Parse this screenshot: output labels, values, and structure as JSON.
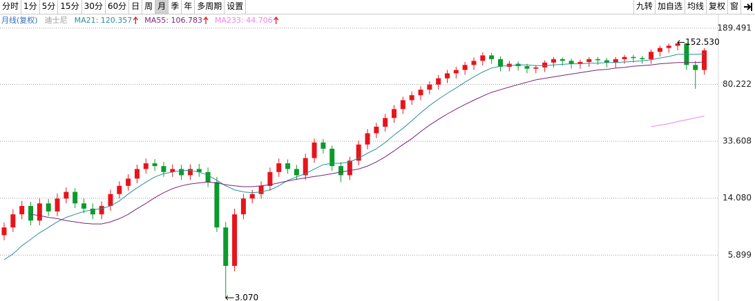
{
  "toolbar": {
    "left": [
      "分时",
      "1分",
      "5分",
      "15分",
      "30分",
      "60分",
      "日",
      "周",
      "月",
      "季",
      "年",
      "多周期",
      "设置"
    ],
    "selected_index": 8,
    "right": [
      "九转",
      "加自选",
      "均线",
      "复权",
      "窗"
    ]
  },
  "chart_data": {
    "type": "candlestick",
    "period_label": "月线(复权)",
    "stock_name": "迪士尼",
    "log_scale": true,
    "ylim": [
      2.923,
      212.6
    ],
    "grid": true,
    "yticks": [
      189.491,
      80.222,
      33.608,
      {
        "value": 14.08,
        "label": "14.080"
      },
      5.899
    ],
    "up_color": "#e8141b",
    "down_color": "#0c9a2c",
    "high_label": "152.530",
    "high_index": 76,
    "low_label": "3.070",
    "low_index": 25,
    "open": [
      8,
      9,
      11,
      12.5,
      10,
      13,
      11.5,
      14,
      15.5,
      13,
      12,
      11,
      12.5,
      15,
      17,
      19,
      22,
      24,
      23,
      21,
      22,
      20,
      22,
      21,
      18,
      9,
      5,
      11,
      14,
      15,
      17,
      21,
      24,
      22,
      20,
      26,
      33,
      30,
      23,
      20,
      25,
      32,
      38,
      42,
      48,
      55,
      63,
      68,
      74,
      80,
      88,
      95,
      100,
      108,
      115,
      125,
      118,
      105,
      110,
      106,
      102,
      104,
      112,
      118,
      115,
      110,
      113,
      118,
      116,
      112,
      118,
      122,
      120,
      118,
      132,
      140,
      145,
      150,
      108,
      100
    ],
    "high": [
      9.7,
      11.9,
      13.5,
      13.3,
      14,
      13.9,
      15.1,
      16.6,
      16.4,
      14,
      13,
      13.4,
      16,
      18.2,
      20.3,
      23.5,
      25.8,
      25.6,
      24.5,
      23.6,
      23.5,
      23.6,
      23.8,
      22.5,
      19.5,
      9.8,
      12,
      15,
      16,
      18.2,
      22.5,
      25.8,
      25.5,
      23.4,
      27.8,
      35,
      34.8,
      31.5,
      24.5,
      26.5,
      34,
      40.5,
      44.5,
      51,
      58.5,
      66.5,
      72,
      78,
      84,
      92.5,
      100,
      105,
      113,
      121,
      131,
      130,
      123,
      115,
      114,
      110,
      108,
      116,
      122,
      121,
      119,
      117,
      122,
      122,
      120,
      122,
      126,
      126,
      124,
      137,
      145,
      150,
      152.53,
      151,
      115,
      140
    ],
    "low": [
      7.4,
      8.4,
      10.2,
      9.3,
      9.3,
      10.7,
      10.7,
      13,
      12.1,
      11.2,
      10.2,
      10.2,
      11.6,
      14,
      15.8,
      17.7,
      20.5,
      21.4,
      19.5,
      19.5,
      18.6,
      18.6,
      19.5,
      16.7,
      8.4,
      3.07,
      4.6,
      10.2,
      13,
      14,
      15.8,
      19.5,
      20.5,
      18.6,
      18.6,
      24.2,
      27.9,
      21.4,
      18,
      18.6,
      23.3,
      29.8,
      35.3,
      39,
      44.6,
      51,
      58.6,
      63,
      69,
      74.4,
      82,
      88,
      93,
      100,
      107,
      110,
      98,
      98,
      99,
      95,
      95,
      97,
      104,
      107,
      102,
      102,
      105,
      108,
      104,
      104,
      110,
      112,
      110,
      110,
      123,
      130,
      135,
      100,
      75,
      93
    ],
    "close": [
      9,
      11,
      12.5,
      10,
      13,
      11.5,
      14,
      15.5,
      13,
      12,
      11,
      12.5,
      15,
      17,
      19,
      22,
      24,
      23,
      21,
      22,
      20,
      22,
      21,
      18,
      9,
      5,
      11,
      14,
      15,
      17,
      21,
      24,
      22,
      20,
      26,
      33,
      30,
      23,
      20,
      25,
      32,
      38,
      42,
      48,
      55,
      63,
      68,
      74,
      80,
      88,
      95,
      100,
      108,
      115,
      125,
      118,
      105,
      110,
      106,
      102,
      104,
      112,
      118,
      115,
      110,
      113,
      118,
      116,
      112,
      118,
      122,
      120,
      118,
      132,
      140,
      145,
      150,
      108,
      100,
      135
    ],
    "series": [
      {
        "name": "MA21: 120.357",
        "color": "#2a8f95",
        "values": [
          5.5,
          6,
          6.8,
          7.5,
          8.3,
          9,
          9.8,
          10.5,
          11,
          11.5,
          11.8,
          12,
          12.5,
          13.5,
          15,
          16.5,
          18,
          19.5,
          20.5,
          21,
          21.5,
          21.5,
          21,
          20,
          18.5,
          17,
          16,
          15.5,
          15.3,
          15.5,
          16,
          17,
          18.5,
          19.5,
          20.5,
          22,
          23.5,
          24,
          24,
          24.5,
          26,
          28,
          30,
          33,
          37,
          41,
          46,
          52,
          58,
          64,
          70,
          76,
          83,
          90,
          97,
          103,
          106,
          107,
          108,
          108,
          107,
          107,
          108,
          109,
          110,
          110,
          111,
          111,
          112,
          112,
          113,
          114,
          115,
          117,
          120,
          123,
          127,
          127,
          127,
          128
        ]
      },
      {
        "name": "MA55: 106.783",
        "color": "#7b1f7b",
        "values": [
          null,
          null,
          null,
          11,
          10.8,
          10.5,
          10.3,
          10,
          9.8,
          9.6,
          9.5,
          9.5,
          9.8,
          10.3,
          11,
          12,
          13,
          14.2,
          15.3,
          16.3,
          17,
          17.5,
          17.8,
          18,
          17.8,
          17.3,
          17,
          16.8,
          16.8,
          17,
          17.3,
          17.8,
          18.3,
          18.8,
          19.2,
          19.6,
          20,
          20.5,
          21,
          21.5,
          22,
          23,
          24.5,
          26.5,
          29,
          32,
          35,
          39,
          43,
          47,
          51,
          55,
          59,
          63,
          67,
          71,
          74,
          77,
          80,
          83,
          86,
          88,
          90,
          92,
          94,
          96,
          98,
          100,
          101,
          103,
          104,
          106,
          107,
          108,
          110,
          111,
          112,
          112,
          112,
          113
        ]
      },
      {
        "name": "MA233: 44.706",
        "color": "#ee82ee",
        "values": [
          null,
          null,
          null,
          null,
          null,
          null,
          null,
          null,
          null,
          null,
          null,
          null,
          null,
          null,
          null,
          null,
          null,
          null,
          null,
          null,
          null,
          null,
          null,
          null,
          null,
          null,
          null,
          null,
          null,
          null,
          null,
          null,
          null,
          null,
          null,
          null,
          null,
          null,
          null,
          null,
          null,
          null,
          null,
          null,
          null,
          null,
          null,
          null,
          null,
          null,
          null,
          null,
          null,
          null,
          null,
          null,
          null,
          null,
          null,
          null,
          null,
          null,
          null,
          null,
          null,
          null,
          null,
          null,
          null,
          null,
          null,
          null,
          null,
          42,
          43,
          44,
          45.5,
          46.7,
          48,
          49.5
        ]
      }
    ]
  }
}
